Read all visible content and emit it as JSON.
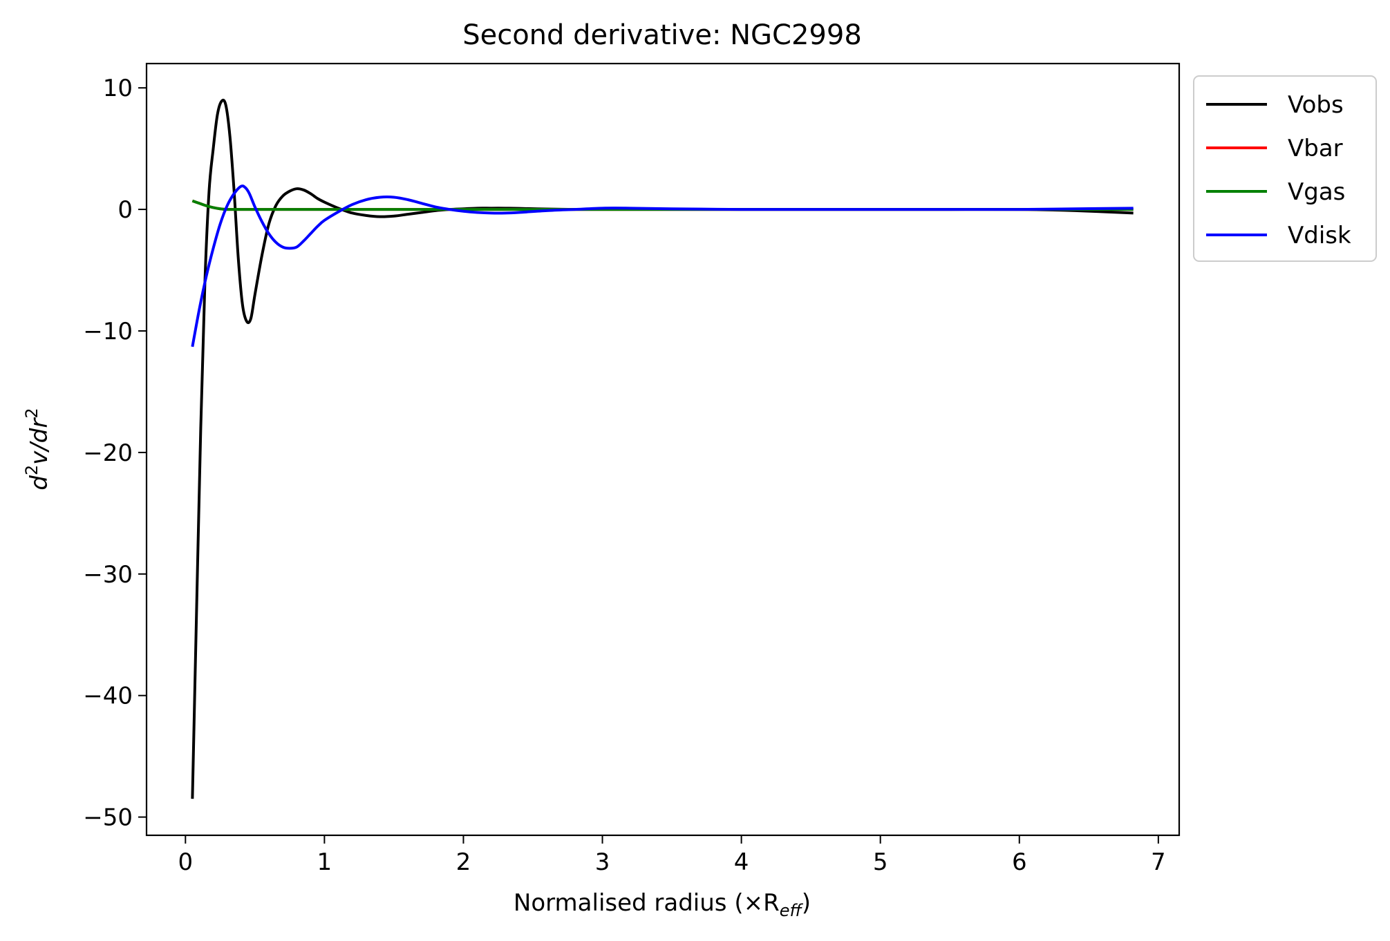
{
  "chart_data": {
    "type": "line",
    "title": "Second derivative: NGC2998",
    "xlabel": "Normalised radius (×R",
    "xlabel_sub": "eff",
    "xlabel_end": ")",
    "ylabel": "d",
    "ylabel_sup": "2",
    "ylabel_mid": "v/dr",
    "ylabel_sup2": "2",
    "xlim": [
      -0.28,
      7.15
    ],
    "ylim": [
      -51.5,
      12
    ],
    "xticks": [
      0,
      1,
      2,
      3,
      4,
      5,
      6,
      7
    ],
    "xtick_labels": [
      "0",
      "1",
      "2",
      "3",
      "4",
      "5",
      "6",
      "7"
    ],
    "yticks": [
      10,
      0,
      -10,
      -20,
      -30,
      -40,
      -50
    ],
    "ytick_labels": [
      "10",
      "0",
      "−10",
      "−20",
      "−30",
      "−40",
      "−50"
    ],
    "legend_position": "outside-top-right",
    "series": [
      {
        "name": "Vobs",
        "color": "#000000",
        "x": [
          0.05,
          0.08,
          0.11,
          0.14,
          0.17,
          0.2,
          0.23,
          0.26,
          0.29,
          0.32,
          0.35,
          0.38,
          0.41,
          0.44,
          0.47,
          0.5,
          0.55,
          0.6,
          0.65,
          0.7,
          0.75,
          0.8,
          0.85,
          0.9,
          0.95,
          1.0,
          1.1,
          1.2,
          1.3,
          1.4,
          1.5,
          1.6,
          1.7,
          1.8,
          1.9,
          2.0,
          2.1,
          2.2,
          2.3,
          2.4,
          2.6,
          2.8,
          3.0,
          3.2,
          3.5,
          4.0,
          4.5,
          5.0,
          5.5,
          6.0,
          6.4,
          6.82
        ],
        "y": [
          -48.5,
          -33.0,
          -18.0,
          -6.0,
          1.5,
          5.0,
          7.8,
          8.9,
          8.6,
          6.0,
          1.5,
          -4.0,
          -7.8,
          -9.2,
          -9.0,
          -7.0,
          -3.8,
          -1.2,
          0.3,
          1.1,
          1.5,
          1.7,
          1.6,
          1.3,
          0.9,
          0.6,
          0.1,
          -0.3,
          -0.5,
          -0.6,
          -0.55,
          -0.4,
          -0.25,
          -0.1,
          0.0,
          0.05,
          0.1,
          0.1,
          0.1,
          0.08,
          0.03,
          0.0,
          0.0,
          0.0,
          0.0,
          0.0,
          0.0,
          0.0,
          0.0,
          0.0,
          -0.1,
          -0.3
        ]
      },
      {
        "name": "Vbar",
        "color": "#ff0000",
        "x": [
          0.05,
          0.1,
          0.15,
          0.2,
          0.25,
          0.3,
          0.4,
          0.5,
          1.0,
          2.0,
          3.0,
          4.0,
          5.0,
          6.0,
          6.82
        ],
        "y": [
          0.7,
          0.5,
          0.3,
          0.15,
          0.05,
          0.0,
          0.0,
          0.0,
          0.0,
          0.0,
          0.0,
          0.0,
          0.0,
          0.0,
          0.0
        ]
      },
      {
        "name": "Vgas",
        "color": "#008000",
        "x": [
          0.05,
          0.1,
          0.15,
          0.2,
          0.25,
          0.3,
          0.4,
          0.5,
          1.0,
          2.0,
          3.0,
          4.0,
          5.0,
          6.0,
          6.82
        ],
        "y": [
          0.7,
          0.5,
          0.3,
          0.15,
          0.05,
          0.0,
          0.0,
          0.0,
          0.0,
          0.0,
          0.0,
          0.0,
          0.0,
          0.0,
          0.0
        ]
      },
      {
        "name": "Vdisk",
        "color": "#0000ff",
        "x": [
          0.05,
          0.1,
          0.15,
          0.2,
          0.25,
          0.3,
          0.35,
          0.4,
          0.43,
          0.46,
          0.5,
          0.55,
          0.6,
          0.65,
          0.7,
          0.75,
          0.8,
          0.85,
          0.9,
          0.95,
          1.0,
          1.1,
          1.2,
          1.3,
          1.4,
          1.5,
          1.6,
          1.7,
          1.8,
          1.9,
          2.0,
          2.1,
          2.2,
          2.3,
          2.4,
          2.6,
          2.8,
          3.0,
          3.2,
          3.5,
          4.0,
          4.5,
          5.0,
          5.5,
          6.0,
          6.4,
          6.82
        ],
        "y": [
          -11.3,
          -8.2,
          -5.5,
          -3.2,
          -1.2,
          0.3,
          1.3,
          1.9,
          1.8,
          1.3,
          0.2,
          -1.0,
          -2.0,
          -2.7,
          -3.1,
          -3.2,
          -3.1,
          -2.6,
          -2.0,
          -1.4,
          -0.9,
          -0.2,
          0.4,
          0.8,
          1.0,
          1.0,
          0.8,
          0.5,
          0.2,
          0.0,
          -0.15,
          -0.25,
          -0.3,
          -0.3,
          -0.25,
          -0.1,
          0.0,
          0.1,
          0.1,
          0.05,
          0.0,
          0.0,
          0.0,
          0.0,
          0.0,
          0.05,
          0.1
        ]
      }
    ]
  }
}
